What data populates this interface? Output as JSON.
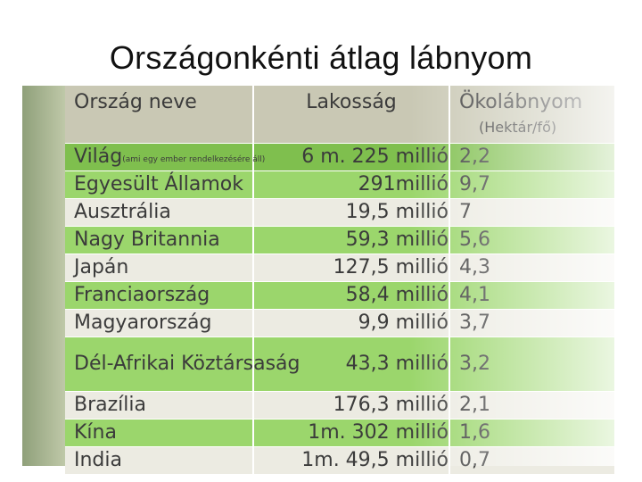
{
  "slide": {
    "title": "Országonkénti átlag lábnyom"
  },
  "table": {
    "headers": {
      "country": "Ország neve",
      "population": "Lakosság",
      "footprint": "Ökolábnyom",
      "footprint_unit": "(Hektár/fő)"
    },
    "world_note": "(ami egy ember rendelkezésére áll)",
    "rows": [
      {
        "country": "Világ",
        "population": "6 m. 225 millió",
        "footprint": "2,2"
      },
      {
        "country": "Egyesült Államok",
        "population": "291millió",
        "footprint": "9,7"
      },
      {
        "country": "Ausztrália",
        "population": "19,5 millió",
        "footprint": "7"
      },
      {
        "country": "Nagy Britannia",
        "population": "59,3 millió",
        "footprint": "5,6"
      },
      {
        "country": "Japán",
        "population": "127,5 millió",
        "footprint": "4,3"
      },
      {
        "country": "Franciaország",
        "population": "58,4 millió",
        "footprint": "4,1"
      },
      {
        "country": "Magyarország",
        "population": "9,9 millió",
        "footprint": "3,7"
      },
      {
        "country": "Dél-Afrikai Köztársaság",
        "population": "43,3 millió",
        "footprint": "3,2"
      },
      {
        "country": "Brazília",
        "population": "176,3 millió",
        "footprint": "2,1"
      },
      {
        "country": "Kína",
        "population": "1m. 302 millió",
        "footprint": "1,6"
      },
      {
        "country": "India",
        "population": "1m. 49,5 millió",
        "footprint": "0,7"
      }
    ]
  }
}
